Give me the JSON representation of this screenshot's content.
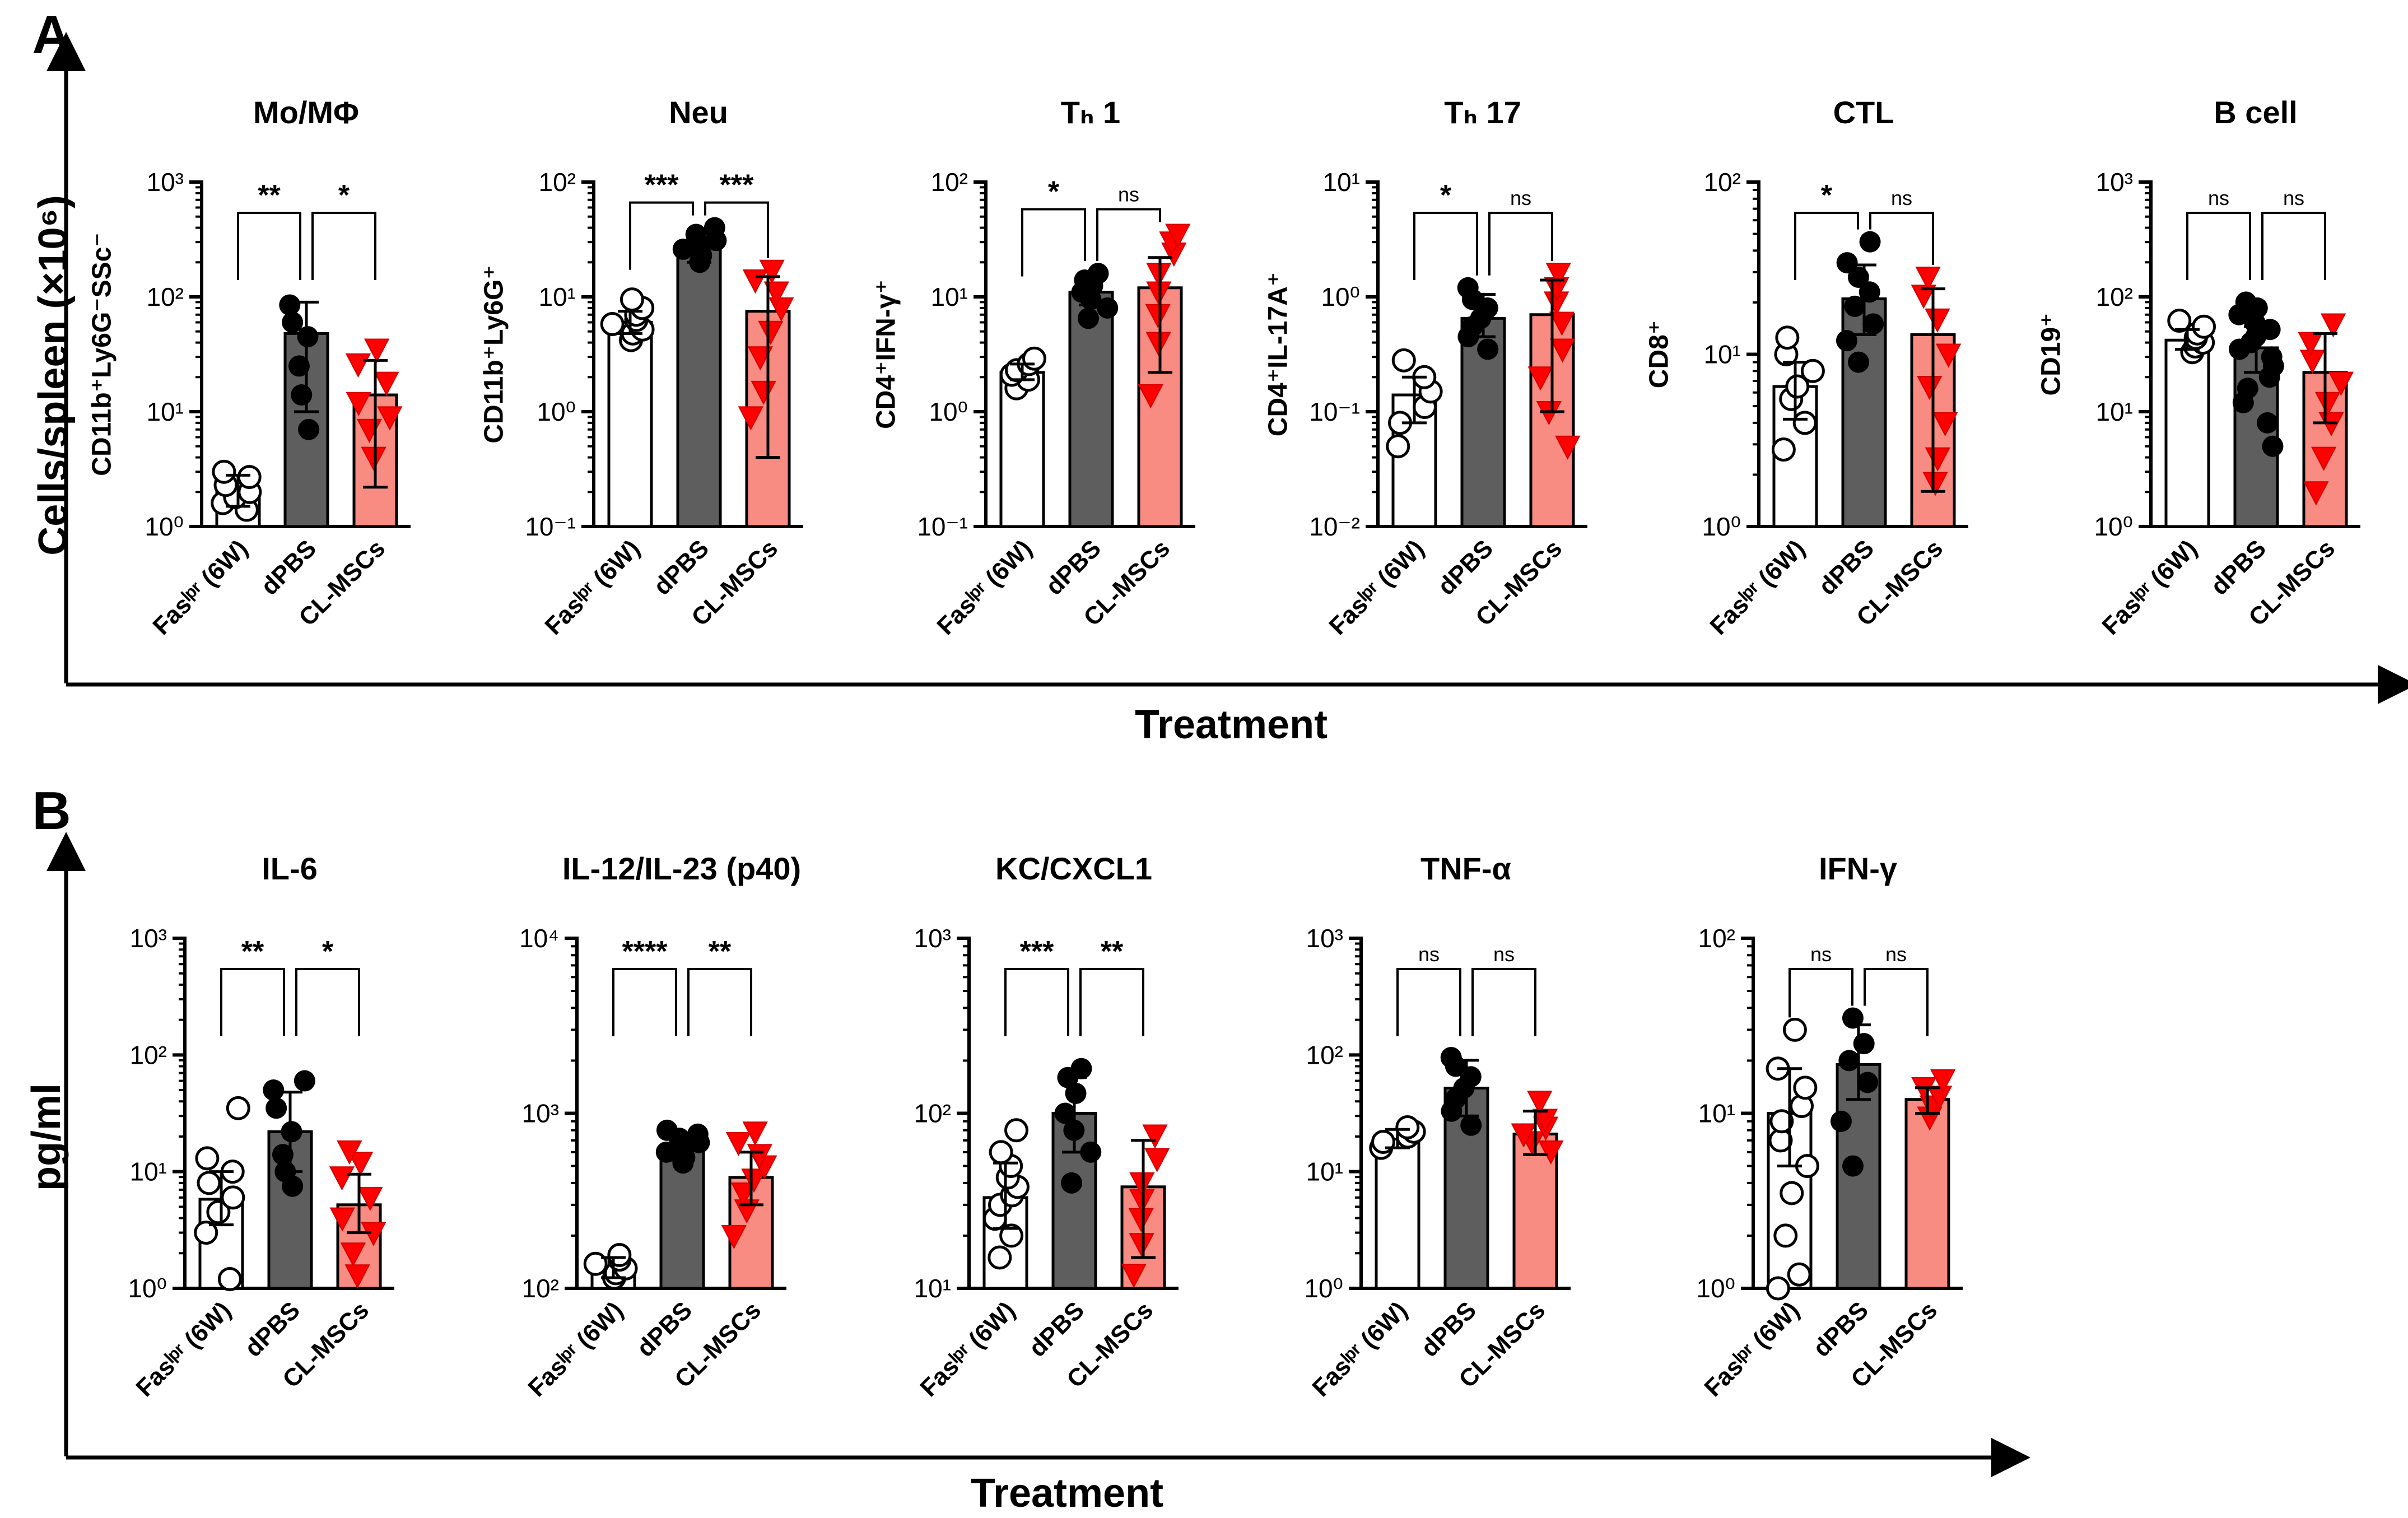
{
  "chart_data": [
    {
      "panel": "A",
      "type": "bar",
      "frame_xlabel": "Treatment",
      "frame_ylabel": "Cells/spleen (×10⁶)",
      "categories": [
        "Fasˡᵖʳ (6W)",
        "dPBS",
        "CL-MSCs"
      ],
      "subplots": [
        {
          "title": "Mo/MΦ",
          "ylabel": "CD11b⁺Ly6G⁻SSc⁻",
          "yscale": "log",
          "ylim": [
            1,
            1000
          ],
          "tick_labels": [
            "10⁰",
            "10¹",
            "10²",
            "10³"
          ],
          "means": [
            2,
            48,
            14
          ],
          "errors": [
            [
              1.5,
              2.8
            ],
            [
              10,
              90
            ],
            [
              2.2,
              28
            ]
          ],
          "points": [
            [
              1.4,
              1.6,
              1.8,
              2.0,
              2.3,
              2.7,
              3.0
            ],
            [
              7,
              14,
              25,
              45,
              60,
              85
            ],
            [
              4,
              7,
              9,
              12,
              18,
              26,
              35
            ]
          ],
          "sig": [
            "**",
            "*"
          ]
        },
        {
          "title": "Neu",
          "ylabel": "CD11b⁺Ly6G⁺",
          "yscale": "log",
          "ylim": [
            0.1,
            100
          ],
          "tick_labels": [
            "10⁻¹",
            "10⁰",
            "10¹",
            "10²"
          ],
          "means": [
            6,
            28,
            7.5
          ],
          "errors": [
            [
              4.8,
              7.5
            ],
            [
              20,
              38
            ],
            [
              0.4,
              15
            ]
          ],
          "points": [
            [
              4.2,
              4.8,
              5.2,
              5.8,
              6.3,
              7.0,
              8.0,
              9.5
            ],
            [
              20,
              23,
              26,
              28,
              31,
              35,
              40
            ],
            [
              0.9,
              1.5,
              3,
              5,
              8,
              11,
              14,
              17
            ]
          ],
          "sig": [
            "***",
            "***"
          ]
        },
        {
          "title": "Tₕ 1",
          "ylabel": "CD4⁺IFN-γ⁺",
          "yscale": "log",
          "ylim": [
            0.1,
            100
          ],
          "tick_labels": [
            "10⁻¹",
            "10⁰",
            "10¹",
            "10²"
          ],
          "means": [
            2.2,
            11,
            12
          ],
          "errors": [
            [
              1.9,
              2.6
            ],
            [
              8.5,
              14
            ],
            [
              2.2,
              22
            ]
          ],
          "points": [
            [
              1.6,
              1.9,
              2.1,
              2.3,
              2.6,
              2.9
            ],
            [
              6.5,
              8,
              9.5,
              11,
              12.5,
              14,
              16
            ],
            [
              1.4,
              4,
              7,
              11,
              16,
              24,
              30,
              35
            ]
          ],
          "sig": [
            "*",
            "ns"
          ]
        },
        {
          "title": "Tₕ 17",
          "ylabel": "CD4⁺IL-17A⁺",
          "yscale": "log",
          "ylim": [
            0.01,
            10
          ],
          "tick_labels": [
            "10⁻²",
            "10⁻¹",
            "10⁰",
            "10¹"
          ],
          "means": [
            0.14,
            0.65,
            0.7
          ],
          "errors": [
            [
              0.08,
              0.2
            ],
            [
              0.45,
              1.05
            ],
            [
              0.1,
              1.4
            ]
          ],
          "points": [
            [
              0.05,
              0.08,
              0.11,
              0.15,
              0.2,
              0.28
            ],
            [
              0.35,
              0.45,
              0.55,
              0.65,
              0.8,
              0.95,
              1.2
            ],
            [
              0.05,
              0.1,
              0.2,
              0.35,
              0.6,
              0.9,
              1.2,
              1.6
            ]
          ],
          "sig": [
            "*",
            "ns"
          ]
        },
        {
          "title": "CTL",
          "ylabel": "CD8⁺",
          "yscale": "log",
          "ylim": [
            1,
            100
          ],
          "tick_labels": [
            "10⁰",
            "10¹",
            "10²"
          ],
          "means": [
            6.5,
            21,
            13
          ],
          "errors": [
            [
              4.2,
              9
            ],
            [
              13,
              33
            ],
            [
              1.6,
              24
            ]
          ],
          "points": [
            [
              2.8,
              4,
              5.5,
              6.5,
              8,
              10,
              12.5
            ],
            [
              9,
              12,
              15,
              19,
              23,
              28,
              34,
              45
            ],
            [
              1.8,
              2.5,
              4,
              6.5,
              10,
              16,
              22,
              28
            ]
          ],
          "sig": [
            "*",
            "ns"
          ]
        },
        {
          "title": "B cell",
          "ylabel": "CD19⁺",
          "yscale": "log",
          "ylim": [
            1,
            1000
          ],
          "tick_labels": [
            "10⁰",
            "10¹",
            "10²",
            "10³"
          ],
          "means": [
            42,
            36,
            22
          ],
          "errors": [
            [
              35,
              52
            ],
            [
              22,
              55
            ],
            [
              8,
              48
            ]
          ],
          "points": [
            [
              33,
              37,
              40,
              44,
              48,
              55,
              62
            ],
            [
              5,
              8,
              12,
              16,
              20,
              25,
              30,
              35,
              40,
              45,
              52,
              60,
              70,
              80,
              90
            ],
            [
              2,
              4,
              8,
              12,
              18,
              28,
              40,
              58
            ]
          ],
          "sig": [
            "ns",
            "ns"
          ]
        }
      ]
    },
    {
      "panel": "B",
      "type": "bar",
      "frame_xlabel": "Treatment",
      "frame_ylabel": "pg/ml",
      "categories": [
        "Fasˡᵖʳ (6W)",
        "dPBS",
        "CL-MSCs"
      ],
      "subplots": [
        {
          "title": "IL-6",
          "yscale": "log",
          "ylim": [
            1,
            1000
          ],
          "tick_labels": [
            "10⁰",
            "10¹",
            "10²",
            "10³"
          ],
          "means": [
            5.8,
            22,
            5.2
          ],
          "errors": [
            [
              3.5,
              10
            ],
            [
              10,
              48
            ],
            [
              3,
              9.5
            ]
          ],
          "points": [
            [
              1.2,
              3,
              4.5,
              6,
              8,
              10,
              13,
              35
            ],
            [
              7.5,
              10,
              14,
              22,
              35,
              50,
              60
            ],
            [
              1.3,
              2,
              3,
              4,
              6,
              9,
              12,
              15
            ]
          ],
          "sig": [
            "**",
            "*"
          ]
        },
        {
          "title": "IL-12/IL-23 (p40)",
          "yscale": "log",
          "ylim": [
            100,
            10000
          ],
          "tick_labels": [
            "10²",
            "10³",
            "10⁴"
          ],
          "means": [
            130,
            620,
            430
          ],
          "errors": [
            [
              115,
              150
            ],
            [
              540,
              720
            ],
            [
              300,
              600
            ]
          ],
          "points": [
            [
              115,
              122,
              130,
              138,
              146,
              155
            ],
            [
              520,
              560,
              600,
              640,
              680,
              720,
              760,
              800
            ],
            [
              200,
              280,
              350,
              420,
              500,
              580,
              680,
              780
            ]
          ],
          "sig": [
            "****",
            "**"
          ]
        },
        {
          "title": "KC/CXCL1",
          "yscale": "log",
          "ylim": [
            10,
            1000
          ],
          "tick_labels": [
            "10¹",
            "10²",
            "10³"
          ],
          "means": [
            33,
            100,
            38
          ],
          "errors": [
            [
              22,
              52
            ],
            [
              60,
              160
            ],
            [
              15,
              70
            ]
          ],
          "points": [
            [
              15,
              20,
              25,
              30,
              34,
              38,
              43,
              50,
              60,
              80
            ],
            [
              40,
              60,
              80,
              100,
              130,
              160,
              180
            ],
            [
              12,
              18,
              25,
              32,
              40,
              55,
              75
            ]
          ],
          "sig": [
            "***",
            "**"
          ]
        },
        {
          "title": "TNF-α",
          "yscale": "log",
          "ylim": [
            1,
            1000
          ],
          "tick_labels": [
            "10⁰",
            "10¹",
            "10²",
            "10³"
          ],
          "means": [
            19,
            52,
            21
          ],
          "errors": [
            [
              16,
              23
            ],
            [
              30,
              90
            ],
            [
              14,
              33
            ]
          ],
          "points": [
            [
              16,
              18,
              20,
              22,
              24
            ],
            [
              25,
              33,
              42,
              52,
              65,
              80,
              95
            ],
            [
              15,
              18,
              21,
              24,
              28,
              40
            ]
          ],
          "sig": [
            "ns",
            "ns"
          ]
        },
        {
          "title": "IFN-γ",
          "yscale": "log",
          "ylim": [
            1,
            100
          ],
          "tick_labels": [
            "10⁰",
            "10¹",
            "10²"
          ],
          "means": [
            10,
            19,
            12
          ],
          "errors": [
            [
              5,
              18
            ],
            [
              12,
              32
            ],
            [
              10,
              14
            ]
          ],
          "points": [
            [
              1,
              1.2,
              2,
              3.5,
              5,
              7,
              9,
              11,
              14,
              18,
              30
            ],
            [
              5,
              9,
              15,
              20,
              25,
              35
            ],
            [
              9.5,
              11,
              12.5,
              14,
              15.5
            ]
          ],
          "sig": [
            "ns",
            "ns"
          ]
        }
      ]
    }
  ]
}
